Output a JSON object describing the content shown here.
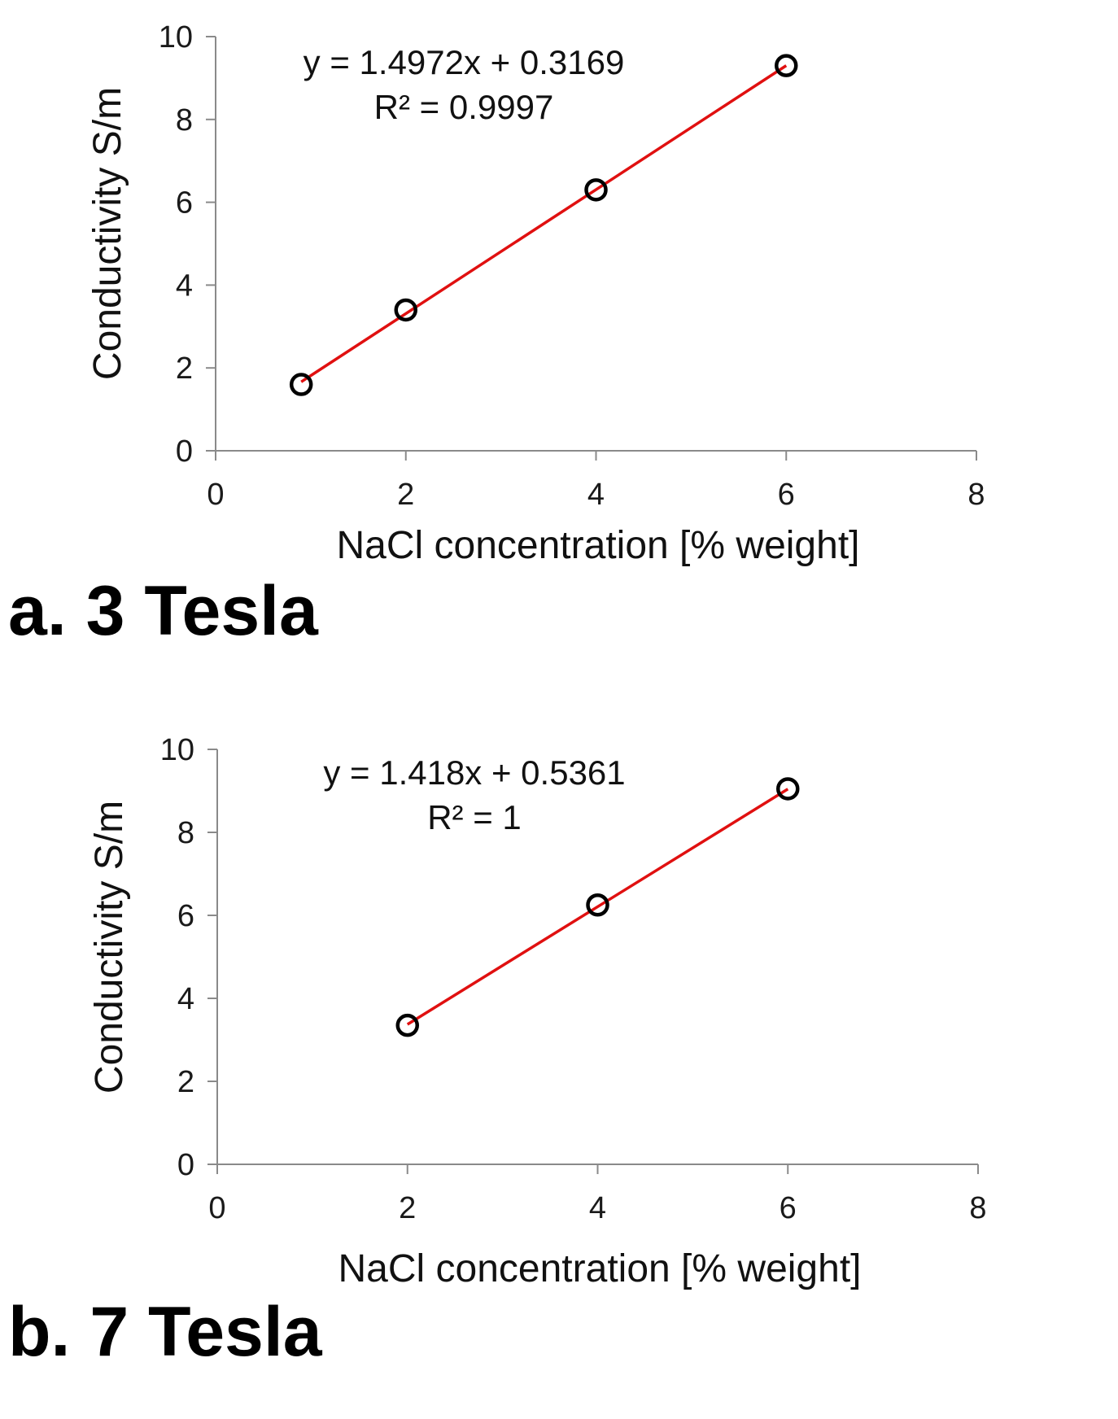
{
  "chart_data": [
    {
      "type": "scatter",
      "panel_label": "a. 3 Tesla",
      "xlabel": "NaCl concentration [% weight]",
      "ylabel": "Conductivity S/m",
      "xlim": [
        0,
        8
      ],
      "ylim": [
        0,
        10
      ],
      "xticks": [
        "0",
        "2",
        "4",
        "6",
        "8"
      ],
      "yticks": [
        "0",
        "2",
        "4",
        "6",
        "8",
        "10"
      ],
      "grid": false,
      "series": [
        {
          "x": [
            0.9,
            2,
            4,
            6
          ],
          "y": [
            1.6,
            3.4,
            6.3,
            9.3
          ],
          "marker": "open-circle",
          "color": "#000000"
        }
      ],
      "trendline": {
        "equation": "y = 1.4972x + 0.3169",
        "r2": "R² = 0.9997",
        "slope": 1.4972,
        "intercept": 0.3169,
        "x_range": [
          0.9,
          6
        ],
        "color": "#e01010"
      }
    },
    {
      "type": "scatter",
      "panel_label": "b. 7 Tesla",
      "xlabel": "NaCl concentration [% weight]",
      "ylabel": "Conductivity S/m",
      "xlim": [
        0,
        8
      ],
      "ylim": [
        0,
        10
      ],
      "xticks": [
        "0",
        "2",
        "4",
        "6",
        "8"
      ],
      "yticks": [
        "0",
        "2",
        "4",
        "6",
        "8",
        "10"
      ],
      "grid": false,
      "series": [
        {
          "x": [
            2,
            4,
            6
          ],
          "y": [
            3.35,
            6.25,
            9.05
          ],
          "marker": "open-circle",
          "color": "#000000"
        }
      ],
      "trendline": {
        "equation": "y = 1.418x + 0.5361",
        "r2": "R² = 1",
        "slope": 1.418,
        "intercept": 0.5361,
        "x_range": [
          2,
          6
        ],
        "color": "#e01010"
      }
    }
  ]
}
